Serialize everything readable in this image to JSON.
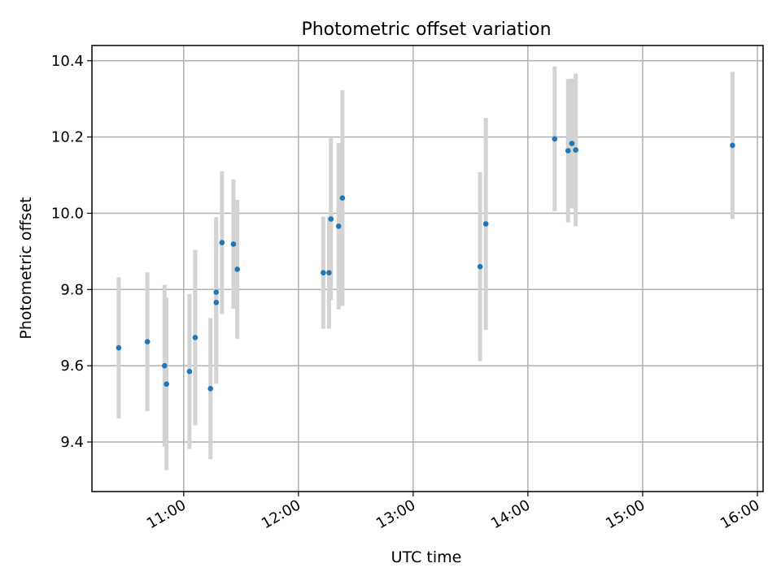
{
  "chart_data": {
    "type": "scatter",
    "title": "Photometric offset variation",
    "xlabel": "UTC time",
    "ylabel": "Photometric offset",
    "x_tick_labels": [
      "11:00",
      "12:00",
      "13:00",
      "14:00",
      "15:00",
      "16:00"
    ],
    "y_tick_labels": [
      "9.4",
      "9.6",
      "9.8",
      "10.0",
      "10.2",
      "10.4"
    ],
    "xlim": [
      "10:12",
      "16:03"
    ],
    "ylim": [
      9.27,
      10.44
    ],
    "grid": true,
    "legend": "none",
    "marker_color": "#1f77b4",
    "errorbar_color": "#d3d3d3",
    "points": [
      {
        "time": "10:26",
        "y": 9.647,
        "yerr": 0.185
      },
      {
        "time": "10:41",
        "y": 9.663,
        "yerr": 0.182
      },
      {
        "time": "10:50",
        "y": 9.6,
        "yerr": 0.212
      },
      {
        "time": "10:51",
        "y": 9.552,
        "yerr": 0.226
      },
      {
        "time": "11:03",
        "y": 9.585,
        "yerr": 0.203
      },
      {
        "time": "11:06",
        "y": 9.674,
        "yerr": 0.23
      },
      {
        "time": "11:14",
        "y": 9.54,
        "yerr": 0.185
      },
      {
        "time": "11:17",
        "y": 9.793,
        "yerr": 0.197
      },
      {
        "time": "11:17",
        "y": 9.766,
        "yerr": 0.213
      },
      {
        "time": "11:20",
        "y": 9.923,
        "yerr": 0.187
      },
      {
        "time": "11:26",
        "y": 9.919,
        "yerr": 0.17
      },
      {
        "time": "11:28",
        "y": 9.853,
        "yerr": 0.182
      },
      {
        "time": "12:13",
        "y": 9.844,
        "yerr": 0.147
      },
      {
        "time": "12:16",
        "y": 9.844,
        "yerr": 0.147
      },
      {
        "time": "12:17",
        "y": 9.985,
        "yerr": 0.212
      },
      {
        "time": "12:21",
        "y": 9.966,
        "yerr": 0.218
      },
      {
        "time": "12:23",
        "y": 10.04,
        "yerr": 0.283
      },
      {
        "time": "13:35",
        "y": 9.86,
        "yerr": 0.248
      },
      {
        "time": "13:38",
        "y": 9.972,
        "yerr": 0.278
      },
      {
        "time": "14:14",
        "y": 10.195,
        "yerr": 0.19
      },
      {
        "time": "14:21",
        "y": 10.164,
        "yerr": 0.188
      },
      {
        "time": "14:23",
        "y": 10.183,
        "yerr": 0.17
      },
      {
        "time": "14:25",
        "y": 10.166,
        "yerr": 0.2
      },
      {
        "time": "15:47",
        "y": 10.178,
        "yerr": 0.193
      }
    ]
  }
}
